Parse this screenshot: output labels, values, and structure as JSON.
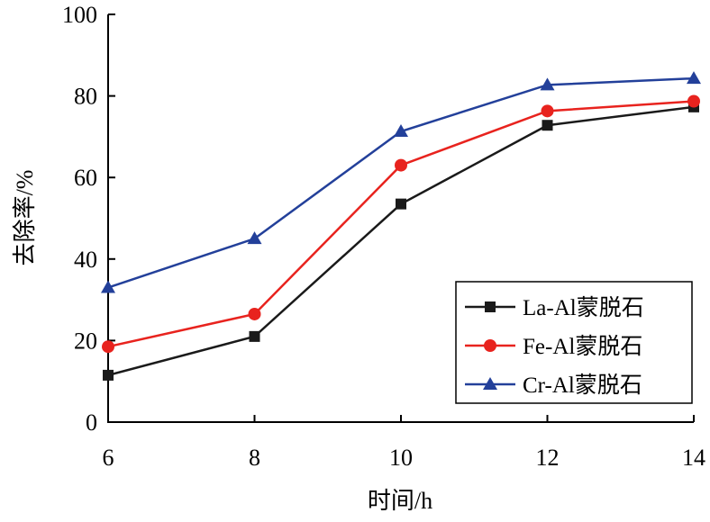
{
  "chart_data": {
    "type": "line",
    "title": "",
    "xlabel": "时间/h",
    "ylabel": "去除率/%",
    "x": [
      6,
      8,
      10,
      12,
      14
    ],
    "xlim": [
      6,
      14
    ],
    "ylim": [
      0,
      100
    ],
    "x_ticks": [
      "6",
      "8",
      "10",
      "12",
      "14"
    ],
    "y_ticks": [
      "0",
      "20",
      "40",
      "60",
      "80",
      "100"
    ],
    "grid": false,
    "legend_position": "bottom-right",
    "series": [
      {
        "name": "La-Al蒙脱石",
        "color": "#1a1a1a",
        "marker": "square",
        "values": [
          11.5,
          21.0,
          53.5,
          72.8,
          77.3
        ]
      },
      {
        "name": "Fe-Al蒙脱石",
        "color": "#e8231e",
        "marker": "circle",
        "values": [
          18.5,
          26.5,
          63.0,
          76.3,
          78.7
        ]
      },
      {
        "name": "Cr-Al蒙脱石",
        "color": "#23409a",
        "marker": "triangle",
        "values": [
          33.0,
          45.0,
          71.3,
          82.7,
          84.3
        ]
      }
    ]
  }
}
